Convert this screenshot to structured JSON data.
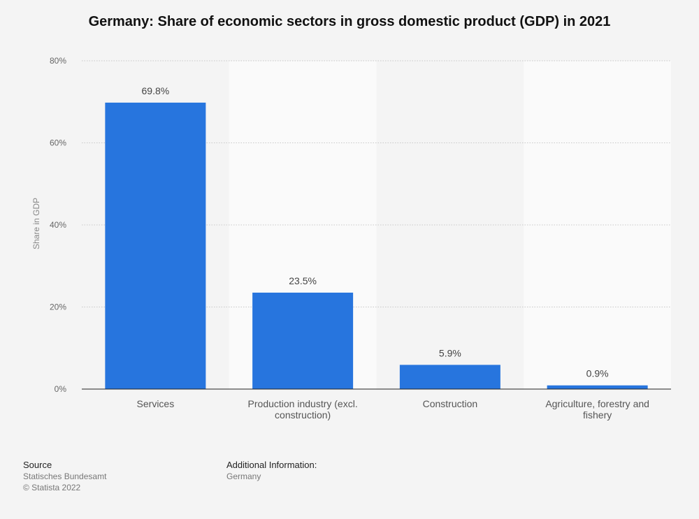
{
  "chart_data": {
    "type": "bar",
    "title": "Germany: Share of economic sectors in gross domestic product (GDP) in 2021",
    "categories": [
      [
        "Services"
      ],
      [
        "Production industry (excl.",
        "construction)"
      ],
      [
        "Construction"
      ],
      [
        "Agriculture, forestry and",
        "fishery"
      ]
    ],
    "values": [
      69.8,
      23.5,
      5.9,
      0.9
    ],
    "value_labels": [
      "69.8%",
      "23.5%",
      "5.9%",
      "0.9%"
    ],
    "ylabel": "Share in GDP",
    "ylim": [
      0,
      80
    ],
    "yticks": [
      0,
      20,
      40,
      60,
      80
    ],
    "ytick_labels": [
      "0%",
      "20%",
      "40%",
      "60%",
      "80%"
    ],
    "grid": true,
    "bar_color": "#2775de"
  },
  "footer": {
    "source_heading": "Source",
    "source_name": "Statisches Bundesamt",
    "copyright": "© Statista 2022",
    "info_heading": "Additional Information:",
    "info_text": "Germany"
  },
  "colors": {
    "background": "#f4f4f4",
    "band_light": "#fafafa",
    "grid": "#c8c8c8",
    "axis": "#222222"
  }
}
